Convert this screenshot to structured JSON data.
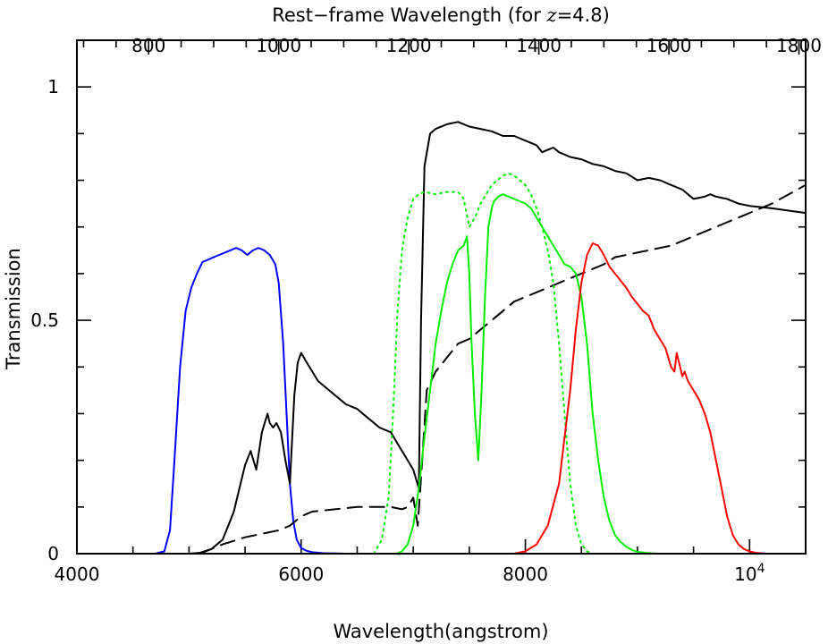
{
  "chart_data": {
    "type": "line",
    "xlabel": "Wavelength(angstrom)",
    "x2label_main": "Rest−frame Wavelength (for ",
    "x2label_z": "z",
    "x2label_tail": "=4.8)",
    "ylabel": "Transmission",
    "xlim": [
      4000,
      10500
    ],
    "ylim": [
      0,
      1.1
    ],
    "x2lim": [
      689.7,
      1810.3
    ],
    "xticks": [
      4000,
      6000,
      8000
    ],
    "xtick_labels": [
      "4000",
      "6000",
      "8000"
    ],
    "xtick_last_base": "10",
    "xtick_last_exp": "4",
    "xtick_last_value": 10000,
    "x2ticks": [
      800,
      1000,
      1200,
      1400,
      1600,
      1800
    ],
    "x2tick_labels": [
      "800",
      "1000",
      "1200",
      "1400",
      "1600",
      "1800"
    ],
    "yticks": [
      0,
      0.5,
      1
    ],
    "ytick_labels": [
      "0",
      "0.5",
      "1"
    ],
    "grid": false,
    "series": [
      {
        "color": "#0000ff",
        "style": "solid",
        "x": [
          4700,
          4780,
          4830,
          4870,
          4920,
          4970,
          5020,
          5070,
          5120,
          5170,
          5220,
          5270,
          5320,
          5370,
          5420,
          5470,
          5520,
          5570,
          5620,
          5670,
          5720,
          5770,
          5800,
          5840,
          5870,
          5900,
          5930,
          5960,
          6000,
          6050,
          6100,
          6200,
          6400,
          6600
        ],
        "y": [
          0,
          0.005,
          0.05,
          0.2,
          0.4,
          0.52,
          0.57,
          0.6,
          0.625,
          0.63,
          0.635,
          0.64,
          0.645,
          0.65,
          0.655,
          0.65,
          0.64,
          0.65,
          0.655,
          0.65,
          0.64,
          0.62,
          0.58,
          0.45,
          0.3,
          0.15,
          0.07,
          0.03,
          0.012,
          0.006,
          0.003,
          0.001,
          0.0,
          0.0
        ]
      },
      {
        "color": "#000000",
        "style": "solid",
        "x": [
          5000,
          5100,
          5200,
          5300,
          5350,
          5400,
          5450,
          5500,
          5550,
          5600,
          5650,
          5700,
          5720,
          5750,
          5780,
          5820,
          5860,
          5900,
          5940,
          5970,
          6000,
          6050,
          6100,
          6150,
          6200,
          6250,
          6300,
          6400,
          6500,
          6550,
          6600,
          6700,
          6800,
          6850,
          6900,
          6950,
          7000,
          7050,
          7070,
          7100,
          7150,
          7200,
          7300,
          7400,
          7500,
          7600,
          7700,
          7800,
          7900,
          8000,
          8100,
          8150,
          8200,
          8250,
          8300,
          8400,
          8500,
          8600,
          8700,
          8800,
          8900,
          9000,
          9100,
          9200,
          9300,
          9400,
          9500,
          9600,
          9650,
          9700,
          9800,
          9900,
          10000,
          10200,
          10500
        ],
        "y": [
          0,
          0.002,
          0.01,
          0.03,
          0.06,
          0.09,
          0.14,
          0.19,
          0.22,
          0.18,
          0.26,
          0.3,
          0.28,
          0.27,
          0.28,
          0.26,
          0.2,
          0.15,
          0.34,
          0.41,
          0.43,
          0.41,
          0.39,
          0.37,
          0.36,
          0.35,
          0.34,
          0.32,
          0.31,
          0.3,
          0.29,
          0.27,
          0.26,
          0.24,
          0.22,
          0.2,
          0.18,
          0.14,
          0.5,
          0.83,
          0.9,
          0.91,
          0.92,
          0.925,
          0.915,
          0.91,
          0.905,
          0.895,
          0.895,
          0.885,
          0.875,
          0.86,
          0.865,
          0.87,
          0.86,
          0.85,
          0.845,
          0.835,
          0.83,
          0.82,
          0.815,
          0.8,
          0.805,
          0.8,
          0.79,
          0.78,
          0.76,
          0.765,
          0.77,
          0.765,
          0.76,
          0.75,
          0.745,
          0.74,
          0.73
        ]
      },
      {
        "color": "#000000",
        "style": "dashed",
        "x": [
          5100,
          5300,
          5500,
          5600,
          5700,
          5800,
          5900,
          6000,
          6050,
          6100,
          6300,
          6500,
          6700,
          6800,
          6900,
          6950,
          7000,
          7040,
          7080,
          7120,
          7200,
          7300,
          7400,
          7500,
          7600,
          7700,
          7800,
          7900,
          8000,
          8100,
          8200,
          8300,
          8400,
          8500,
          8600,
          8700,
          8800,
          8900,
          9000,
          9100,
          9200,
          9300,
          9400,
          9500,
          9600,
          9700,
          9800,
          9900,
          10000,
          10200,
          10500
        ],
        "y": [
          0,
          0.02,
          0.035,
          0.04,
          0.045,
          0.05,
          0.06,
          0.08,
          0.085,
          0.09,
          0.095,
          0.1,
          0.1,
          0.1,
          0.095,
          0.1,
          0.12,
          0.06,
          0.2,
          0.35,
          0.39,
          0.42,
          0.45,
          0.46,
          0.48,
          0.5,
          0.52,
          0.54,
          0.55,
          0.56,
          0.57,
          0.58,
          0.59,
          0.6,
          0.61,
          0.62,
          0.635,
          0.64,
          0.645,
          0.65,
          0.655,
          0.66,
          0.67,
          0.68,
          0.69,
          0.7,
          0.71,
          0.72,
          0.73,
          0.75,
          0.79
        ]
      },
      {
        "color": "#00ee00",
        "style": "dotted",
        "x": [
          6650,
          6720,
          6780,
          6820,
          6860,
          6900,
          6950,
          7000,
          7050,
          7100,
          7200,
          7300,
          7400,
          7450,
          7500,
          7550,
          7600,
          7650,
          7700,
          7750,
          7800,
          7850,
          7900,
          7950,
          8000,
          8050,
          8100,
          8150,
          8200,
          8250,
          8300,
          8350,
          8400,
          8450,
          8500,
          8550,
          8600
        ],
        "y": [
          0,
          0.03,
          0.12,
          0.3,
          0.52,
          0.65,
          0.72,
          0.76,
          0.77,
          0.775,
          0.77,
          0.775,
          0.775,
          0.76,
          0.7,
          0.72,
          0.75,
          0.77,
          0.79,
          0.8,
          0.81,
          0.815,
          0.81,
          0.8,
          0.79,
          0.77,
          0.74,
          0.7,
          0.65,
          0.58,
          0.45,
          0.3,
          0.15,
          0.06,
          0.02,
          0.005,
          0
        ]
      },
      {
        "color": "#00ee00",
        "style": "solid",
        "x": [
          6850,
          6900,
          6950,
          7000,
          7050,
          7100,
          7150,
          7200,
          7250,
          7300,
          7350,
          7400,
          7450,
          7480,
          7500,
          7520,
          7550,
          7580,
          7610,
          7640,
          7670,
          7700,
          7720,
          7760,
          7800,
          7850,
          7900,
          7950,
          8000,
          8050,
          8100,
          8150,
          8200,
          8250,
          8300,
          8350,
          8400,
          8450,
          8500,
          8550,
          8600,
          8650,
          8700,
          8750,
          8800,
          8850,
          8900,
          8950,
          9000,
          9100,
          9200
        ],
        "y": [
          0,
          0.005,
          0.02,
          0.06,
          0.14,
          0.25,
          0.35,
          0.45,
          0.52,
          0.58,
          0.62,
          0.65,
          0.66,
          0.68,
          0.6,
          0.45,
          0.3,
          0.2,
          0.35,
          0.55,
          0.7,
          0.74,
          0.755,
          0.765,
          0.77,
          0.765,
          0.76,
          0.755,
          0.75,
          0.74,
          0.72,
          0.7,
          0.68,
          0.66,
          0.64,
          0.62,
          0.615,
          0.6,
          0.55,
          0.45,
          0.3,
          0.2,
          0.12,
          0.07,
          0.04,
          0.025,
          0.015,
          0.008,
          0.004,
          0.001,
          0
        ]
      },
      {
        "color": "#ff0000",
        "style": "solid",
        "x": [
          7900,
          8000,
          8100,
          8200,
          8300,
          8400,
          8450,
          8500,
          8550,
          8600,
          8650,
          8700,
          8750,
          8800,
          8850,
          8900,
          8950,
          9000,
          9050,
          9100,
          9150,
          9200,
          9250,
          9300,
          9330,
          9350,
          9380,
          9400,
          9420,
          9450,
          9500,
          9550,
          9600,
          9650,
          9700,
          9750,
          9800,
          9850,
          9900,
          9950,
          10000,
          10050,
          10100,
          10150,
          10200
        ],
        "y": [
          0,
          0.005,
          0.02,
          0.06,
          0.15,
          0.35,
          0.48,
          0.58,
          0.64,
          0.665,
          0.66,
          0.64,
          0.615,
          0.6,
          0.585,
          0.57,
          0.55,
          0.535,
          0.52,
          0.51,
          0.48,
          0.46,
          0.44,
          0.4,
          0.39,
          0.43,
          0.4,
          0.38,
          0.39,
          0.37,
          0.35,
          0.33,
          0.3,
          0.26,
          0.2,
          0.14,
          0.08,
          0.04,
          0.02,
          0.01,
          0.005,
          0.002,
          0.001,
          0,
          0
        ]
      }
    ]
  }
}
